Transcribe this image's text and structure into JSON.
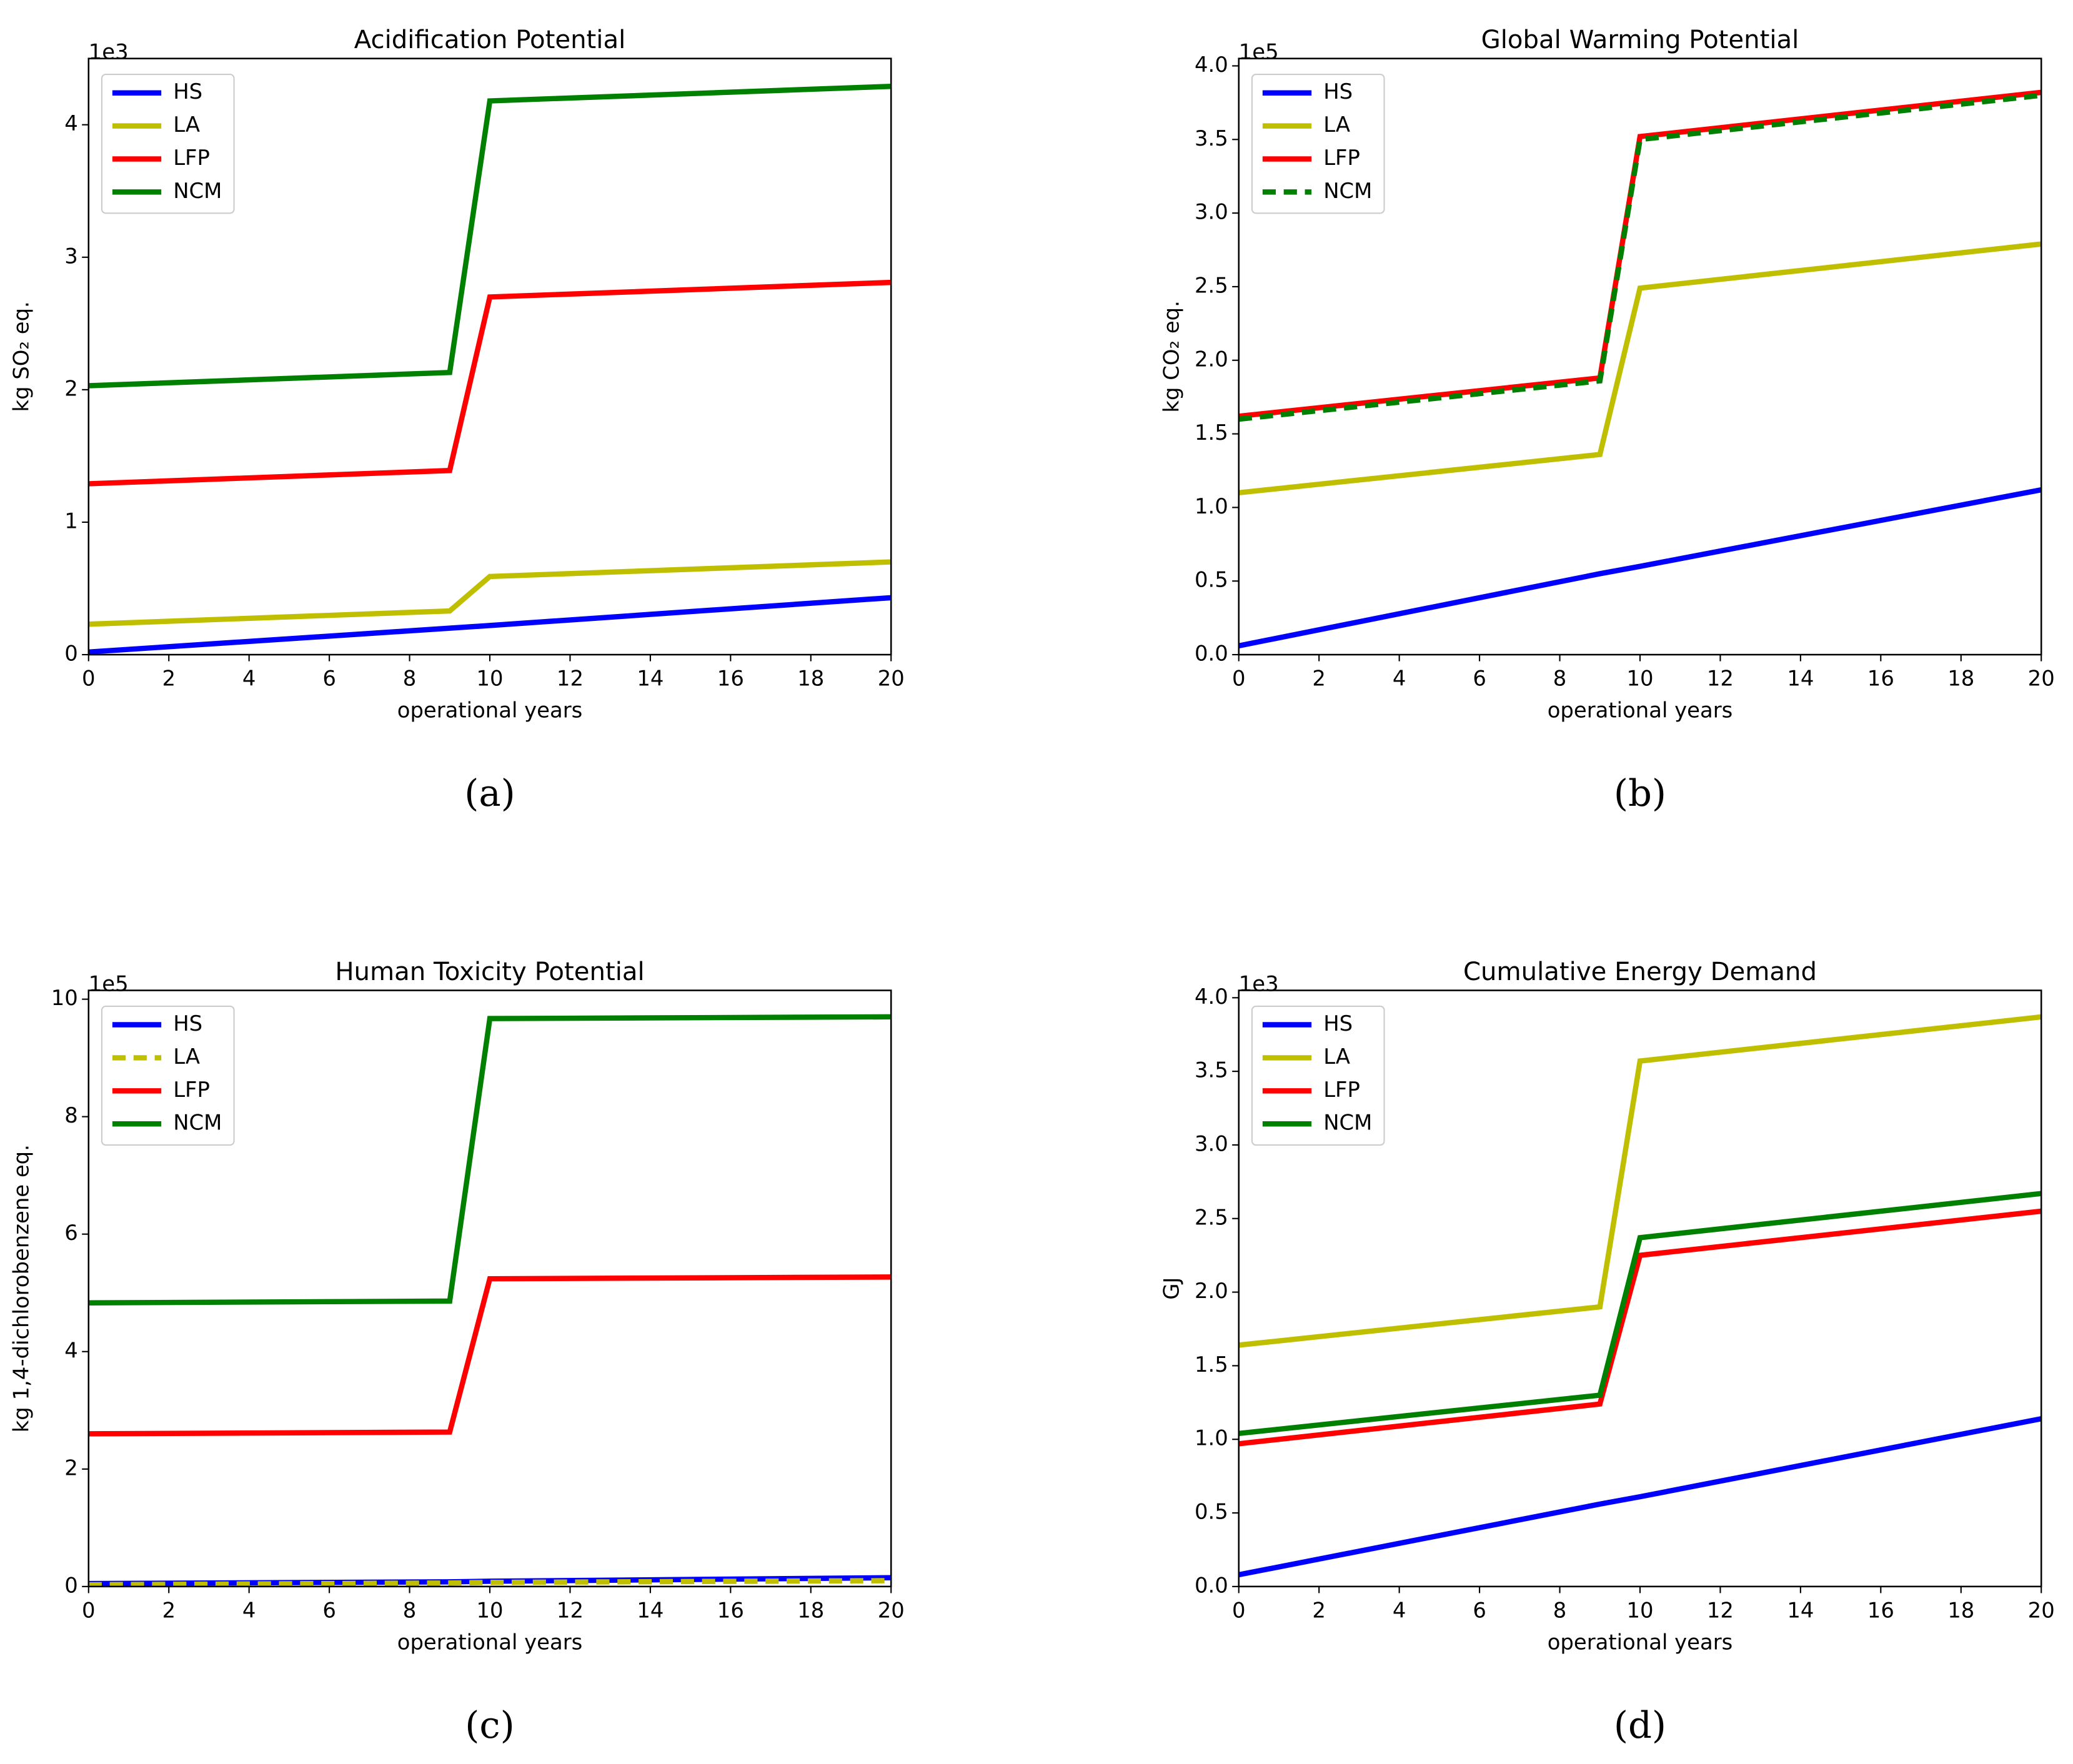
{
  "chart_data": [
    {
      "type": "line",
      "title": "Acidification Potential",
      "xlabel": "operational years",
      "ylabel": "kg SO₂ eq.",
      "offset_text": "1e3",
      "caption": "(a)",
      "x": [
        0,
        9,
        10,
        20
      ],
      "xlim": [
        0,
        20
      ],
      "xticks": [
        0,
        2,
        4,
        6,
        8,
        10,
        12,
        14,
        16,
        18,
        20
      ],
      "ylim": [
        0,
        4.5
      ],
      "yticks": [
        0,
        1,
        2,
        3,
        4
      ],
      "legend": "upper left",
      "series": [
        {
          "name": "HS",
          "color": "#0000ff",
          "linestyle": "solid",
          "values": [
            0.02,
            0.2,
            0.22,
            0.43
          ]
        },
        {
          "name": "LA",
          "color": "#bfbf00",
          "linestyle": "solid",
          "values": [
            0.23,
            0.33,
            0.59,
            0.7
          ]
        },
        {
          "name": "LFP",
          "color": "#ff0000",
          "linestyle": "solid",
          "values": [
            1.29,
            1.39,
            2.7,
            2.81
          ]
        },
        {
          "name": "NCM",
          "color": "#008000",
          "linestyle": "solid",
          "values": [
            2.03,
            2.13,
            4.18,
            4.29
          ]
        }
      ]
    },
    {
      "type": "line",
      "title": "Global Warming Potential",
      "xlabel": "operational years",
      "ylabel": "kg CO₂ eq.",
      "offset_text": "1e5",
      "caption": "(b)",
      "x": [
        0,
        9,
        10,
        20
      ],
      "xlim": [
        0,
        20
      ],
      "xticks": [
        0,
        2,
        4,
        6,
        8,
        10,
        12,
        14,
        16,
        18,
        20
      ],
      "ylim": [
        0,
        4.05
      ],
      "yticks": [
        {
          "value": 0,
          "label": "0.0"
        },
        0.5,
        {
          "value": 1,
          "label": "1.0"
        },
        1.5,
        {
          "value": 2,
          "label": "2.0"
        },
        2.5,
        {
          "value": 3,
          "label": "3.0"
        },
        3.5,
        {
          "value": 4,
          "label": "4.0"
        }
      ],
      "legend": "upper left",
      "series": [
        {
          "name": "HS",
          "color": "#0000ff",
          "linestyle": "solid",
          "values": [
            0.06,
            0.55,
            0.6,
            1.12
          ]
        },
        {
          "name": "LA",
          "color": "#bfbf00",
          "linestyle": "solid",
          "values": [
            1.1,
            1.36,
            2.49,
            2.79
          ]
        },
        {
          "name": "LFP",
          "color": "#ff0000",
          "linestyle": "solid",
          "values": [
            1.62,
            1.88,
            3.52,
            3.82
          ]
        },
        {
          "name": "NCM",
          "color": "#008000",
          "linestyle": "dashed",
          "values": [
            1.6,
            1.86,
            3.5,
            3.8
          ]
        }
      ]
    },
    {
      "type": "line",
      "title": "Human Toxicity Potential",
      "xlabel": "operational years",
      "ylabel": "kg 1,4-dichlorobenzene eq.",
      "offset_text": "1e5",
      "caption": "(c)",
      "x": [
        0,
        9,
        10,
        20
      ],
      "xlim": [
        0,
        20
      ],
      "xticks": [
        0,
        2,
        4,
        6,
        8,
        10,
        12,
        14,
        16,
        18,
        20
      ],
      "ylim": [
        0,
        10.15
      ],
      "yticks": [
        0,
        2,
        4,
        6,
        8,
        10
      ],
      "legend": "upper left",
      "series": [
        {
          "name": "HS",
          "color": "#0000ff",
          "linestyle": "solid",
          "values": [
            0.05,
            0.08,
            0.09,
            0.15
          ]
        },
        {
          "name": "LA",
          "color": "#bfbf00",
          "linestyle": "dashed",
          "values": [
            0.03,
            0.06,
            0.07,
            0.1
          ]
        },
        {
          "name": "LFP",
          "color": "#ff0000",
          "linestyle": "solid",
          "values": [
            2.6,
            2.63,
            5.24,
            5.27
          ]
        },
        {
          "name": "NCM",
          "color": "#008000",
          "linestyle": "solid",
          "values": [
            4.83,
            4.86,
            9.67,
            9.7
          ]
        }
      ]
    },
    {
      "type": "line",
      "title": "Cumulative Energy Demand",
      "xlabel": "operational years",
      "ylabel": "GJ",
      "offset_text": "1e3",
      "caption": "(d)",
      "x": [
        0,
        9,
        10,
        20
      ],
      "xlim": [
        0,
        20
      ],
      "xticks": [
        0,
        2,
        4,
        6,
        8,
        10,
        12,
        14,
        16,
        18,
        20
      ],
      "ylim": [
        0,
        4.05
      ],
      "yticks": [
        {
          "value": 0,
          "label": "0.0"
        },
        0.5,
        {
          "value": 1,
          "label": "1.0"
        },
        1.5,
        {
          "value": 2,
          "label": "2.0"
        },
        2.5,
        {
          "value": 3,
          "label": "3.0"
        },
        3.5,
        {
          "value": 4,
          "label": "4.0"
        }
      ],
      "legend": "upper left",
      "series": [
        {
          "name": "HS",
          "color": "#0000ff",
          "linestyle": "solid",
          "values": [
            0.08,
            0.56,
            0.61,
            1.14
          ]
        },
        {
          "name": "LA",
          "color": "#bfbf00",
          "linestyle": "solid",
          "values": [
            1.64,
            1.9,
            3.57,
            3.87
          ]
        },
        {
          "name": "LFP",
          "color": "#ff0000",
          "linestyle": "solid",
          "values": [
            0.97,
            1.24,
            2.25,
            2.55
          ]
        },
        {
          "name": "NCM",
          "color": "#008000",
          "linestyle": "solid",
          "values": [
            1.04,
            1.3,
            2.37,
            2.67
          ]
        }
      ]
    }
  ]
}
